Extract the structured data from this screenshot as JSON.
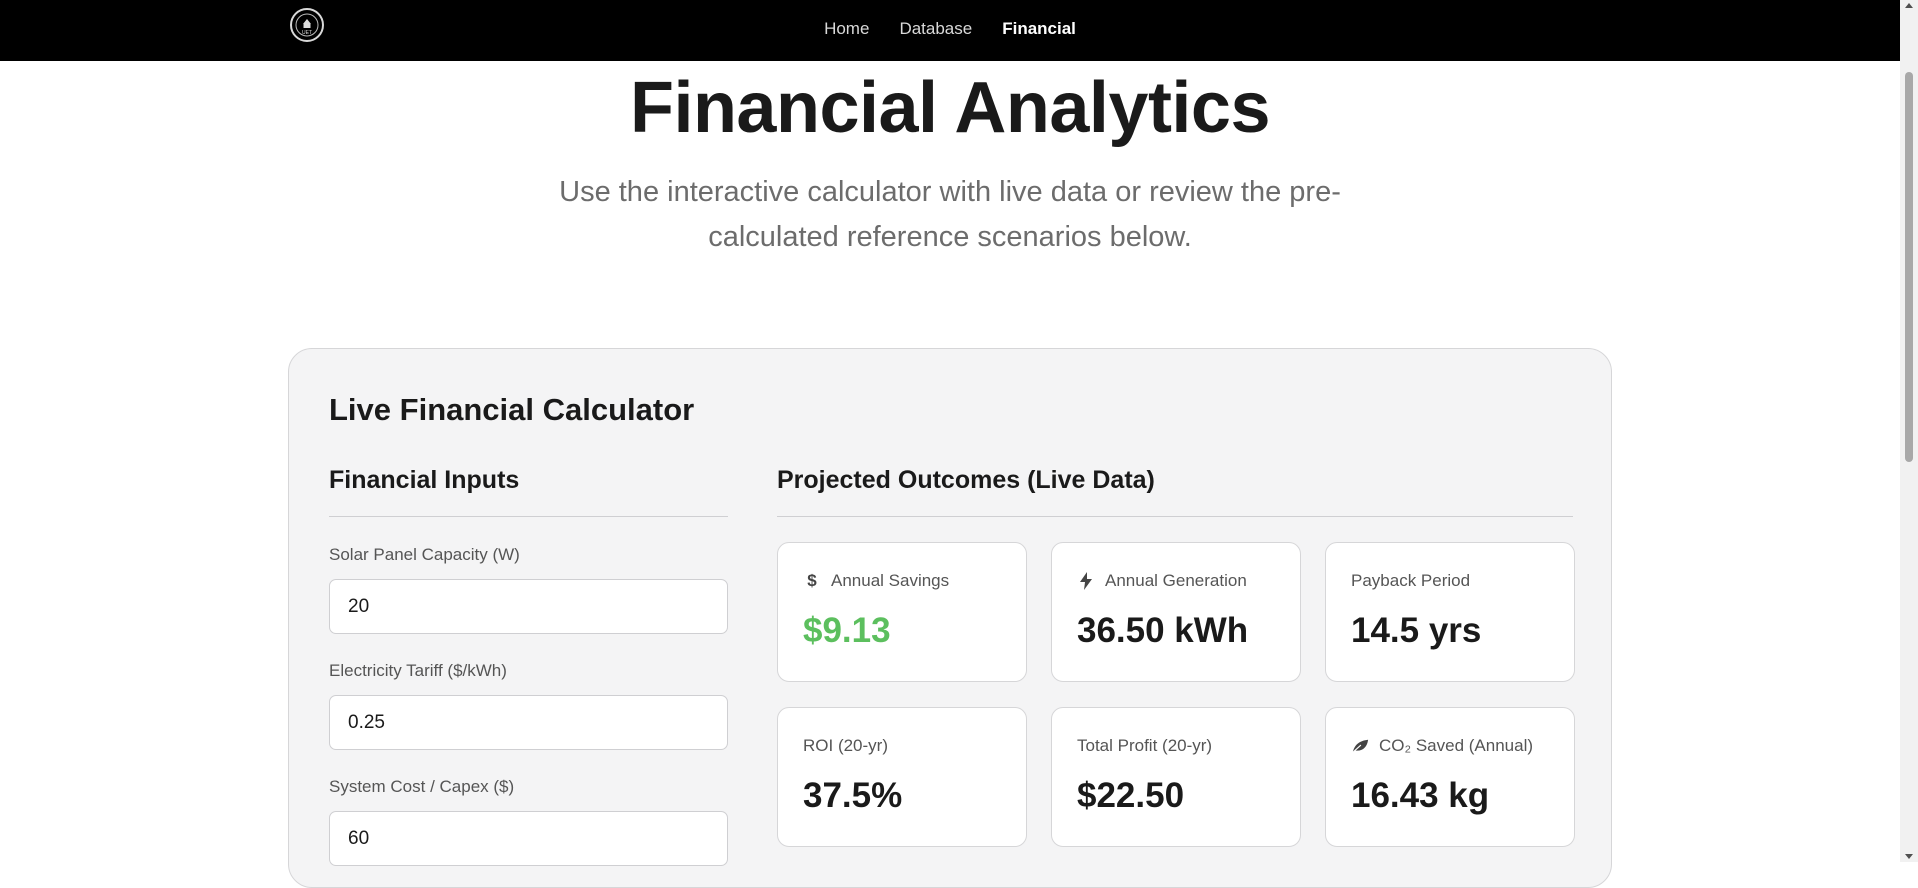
{
  "nav": {
    "logo_text": "UET",
    "items": [
      {
        "label": "Home",
        "active": false
      },
      {
        "label": "Database",
        "active": false
      },
      {
        "label": "Financial",
        "active": true
      }
    ]
  },
  "header": {
    "title": "Financial Analytics",
    "subtitle": "Use the interactive calculator with live data or review the pre-calculated reference scenarios below."
  },
  "calculator": {
    "title": "Live Financial Calculator",
    "inputs": {
      "heading": "Financial Inputs",
      "fields": [
        {
          "label": "Solar Panel Capacity (W)",
          "value": "20"
        },
        {
          "label": "Electricity Tariff ($/kWh)",
          "value": "0.25"
        },
        {
          "label": "System Cost / Capex ($)",
          "value": "60"
        }
      ]
    },
    "outcomes": {
      "heading": "Projected Outcomes (Live Data)",
      "metrics": [
        {
          "label": "Annual Savings",
          "value": "$9.13",
          "icon": "dollar-icon",
          "value_color": "#5cbf5e"
        },
        {
          "label": "Annual Generation",
          "value": "36.50 kWh",
          "icon": "lightning-bolt-icon"
        },
        {
          "label": "Payback Period",
          "value": "14.5 yrs"
        },
        {
          "label": "ROI (20-yr)",
          "value": "37.5%"
        },
        {
          "label": "Total Profit (20-yr)",
          "value": "$22.50"
        },
        {
          "label": "CO₂ Saved (Annual)",
          "value": "16.43 kg",
          "icon": "leaf-icon"
        }
      ]
    }
  },
  "colors": {
    "nav_bg": "#000000",
    "accent_green": "#5cbf5e",
    "card_bg": "#f4f4f5"
  }
}
